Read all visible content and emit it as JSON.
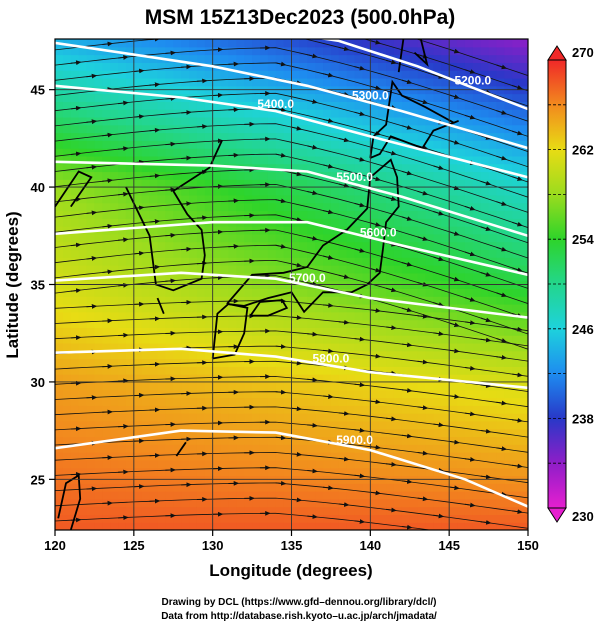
{
  "chart_data": {
    "type": "heatmap",
    "title": "MSM 15Z13Dec2023 (500.0hPa)",
    "xlabel": "Longitude (degrees)",
    "ylabel": "Latitude  (degrees)",
    "xlim": [
      120,
      150
    ],
    "ylim": [
      22.4,
      47.6
    ],
    "xticks": [
      120,
      125,
      130,
      135,
      140,
      145,
      150
    ],
    "yticks": [
      25,
      30,
      35,
      40,
      45
    ],
    "colorbar": {
      "min": 230,
      "max": 270,
      "ticks": [
        230,
        238,
        246,
        254,
        262,
        270
      ],
      "stops": [
        {
          "value": 230,
          "color": "#e61fd0"
        },
        {
          "value": 234,
          "color": "#8f1ec8"
        },
        {
          "value": 238,
          "color": "#2838c8"
        },
        {
          "value": 242,
          "color": "#1e8cf0"
        },
        {
          "value": 246,
          "color": "#1ed2dc"
        },
        {
          "value": 250,
          "color": "#23d68c"
        },
        {
          "value": 254,
          "color": "#2ed42a"
        },
        {
          "value": 258,
          "color": "#9bdc1e"
        },
        {
          "value": 262,
          "color": "#e8dc14"
        },
        {
          "value": 266,
          "color": "#f28a1e"
        },
        {
          "value": 270,
          "color": "#f02828"
        }
      ]
    },
    "temperature_field": {
      "description_values_K": [
        {
          "lat": 47.6,
          "lon": 120,
          "value": 244
        },
        {
          "lat": 47.6,
          "lon": 150,
          "value": 234
        },
        {
          "lat": 40,
          "lon": 120,
          "value": 258
        },
        {
          "lat": 40,
          "lon": 150,
          "value": 247
        },
        {
          "lat": 35,
          "lon": 120,
          "value": 261
        },
        {
          "lat": 35,
          "lon": 150,
          "value": 253
        },
        {
          "lat": 30,
          "lon": 120,
          "value": 265
        },
        {
          "lat": 30,
          "lon": 150,
          "value": 261
        },
        {
          "lat": 22.4,
          "lon": 120,
          "value": 268
        },
        {
          "lat": 22.4,
          "lon": 150,
          "value": 268
        }
      ]
    },
    "contours": [
      {
        "label": "5200.0",
        "label_lon": 146.5,
        "points": [
          [
            120,
            49
          ],
          [
            130,
            48.5
          ],
          [
            138,
            47.5
          ],
          [
            143,
            46.2
          ],
          [
            150,
            44.0
          ]
        ]
      },
      {
        "label": "5300.0",
        "label_lon": 140.0,
        "points": [
          [
            120,
            47.4
          ],
          [
            130,
            46.2
          ],
          [
            136,
            45.2
          ],
          [
            142,
            43.9
          ],
          [
            150,
            42.0
          ]
        ]
      },
      {
        "label": "5400.0",
        "label_lon": 134.0,
        "points": [
          [
            120,
            45.2
          ],
          [
            128,
            44.6
          ],
          [
            134,
            43.9
          ],
          [
            140,
            42.6
          ],
          [
            150,
            40.5
          ]
        ]
      },
      {
        "label": "5500.0",
        "label_lon": 139.0,
        "points": [
          [
            120,
            41.3
          ],
          [
            130,
            41.1
          ],
          [
            136,
            40.8
          ],
          [
            142,
            39.5
          ],
          [
            150,
            37.5
          ]
        ]
      },
      {
        "label": "5600.0",
        "label_lon": 140.5,
        "points": [
          [
            120,
            37.6
          ],
          [
            130,
            38.2
          ],
          [
            136,
            38.2
          ],
          [
            142,
            37.0
          ],
          [
            150,
            35.5
          ]
        ]
      },
      {
        "label": "5700.0",
        "label_lon": 136.0,
        "points": [
          [
            120,
            35.2
          ],
          [
            128,
            35.6
          ],
          [
            134,
            35.3
          ],
          [
            140,
            34.3
          ],
          [
            150,
            33.3
          ]
        ]
      },
      {
        "label": "5800.0",
        "label_lon": 137.5,
        "points": [
          [
            120,
            31.5
          ],
          [
            128,
            31.7
          ],
          [
            134,
            31.3
          ],
          [
            140,
            30.5
          ],
          [
            150,
            29.7
          ]
        ]
      },
      {
        "label": "5900.0",
        "label_lon": 139.0,
        "points": [
          [
            120,
            26.6
          ],
          [
            128,
            27.5
          ],
          [
            134,
            27.4
          ],
          [
            140,
            26.5
          ],
          [
            146,
            25.0
          ],
          [
            150,
            23.6
          ]
        ]
      }
    ],
    "grid": true,
    "streamlines": true
  },
  "credits": [
    "Drawing by DCL (https://www.gfd–dennou.org/library/dcl/)",
    "Data from http://database.rish.kyoto–u.ac.jp/arch/jmadata/"
  ]
}
